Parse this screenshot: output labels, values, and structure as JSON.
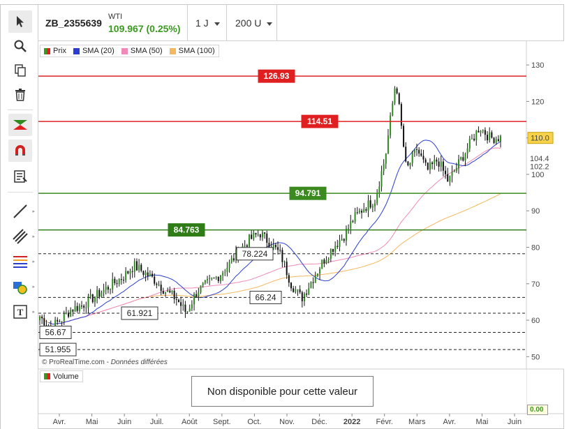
{
  "header": {
    "symbol": "ZB_2355639",
    "name": "WTI",
    "price": "109.967 (0.25%)",
    "timeframe": "1 J",
    "units": "200 U"
  },
  "legend": [
    {
      "label": "Prix",
      "color": "#3a9a1f"
    },
    {
      "label": "SMA (20)",
      "color": "#2a3fcf"
    },
    {
      "label": "SMA (50)",
      "color": "#f08ab8"
    },
    {
      "label": "SMA (100)",
      "color": "#f4b860"
    }
  ],
  "toolbar": {
    "tools": [
      "cursor-icon",
      "zoom-icon",
      "copy-icon",
      "trash-icon",
      "chart-type-icon",
      "magnet-icon",
      "list-icon",
      "line-icon",
      "parallel-lines-icon",
      "fibonacci-icon",
      "shapes-icon",
      "text-icon"
    ]
  },
  "footer": {
    "copyright": "© ProRealTime.com - ",
    "delayed": "Données différées",
    "volume_label": "Volume",
    "volume_unavailable": "Non disponible pour cette valeur",
    "volume_value": "0.00"
  },
  "chart_data": {
    "type": "candlestick",
    "ylim": [
      47,
      135
    ],
    "y_ticks": [
      50,
      60,
      70,
      80,
      90,
      100,
      110,
      120,
      130
    ],
    "x_labels": [
      "Avr.",
      "Mai",
      "Juin",
      "Juil.",
      "Août",
      "Sept.",
      "Oct.",
      "Nov.",
      "Déc.",
      "2022",
      "Févr.",
      "Mars",
      "Avr.",
      "Mai",
      "Juin"
    ],
    "current_price": "110.0",
    "price_markers": [
      {
        "label": "102.2",
        "value": 102.2,
        "color": "#555"
      },
      {
        "label": "104.4",
        "value": 104.4,
        "color": "#f08ab8"
      }
    ],
    "levels": [
      {
        "label": "126.93",
        "value": 126.93,
        "color": "#e02020",
        "style": "solid"
      },
      {
        "label": "114.51",
        "value": 114.51,
        "color": "#e02020",
        "style": "solid"
      },
      {
        "label": "94.791",
        "value": 94.791,
        "color": "#3a8a1f",
        "style": "solid"
      },
      {
        "label": "84.763",
        "value": 84.763,
        "color": "#2e7d16",
        "style": "solid"
      },
      {
        "label": "78.224",
        "value": 78.224,
        "color": "#222",
        "style": "dashed"
      },
      {
        "label": "66.24",
        "value": 66.24,
        "color": "#222",
        "style": "dashed"
      },
      {
        "label": "61.921",
        "value": 61.921,
        "color": "#222",
        "style": "dashed"
      },
      {
        "label": "56.67",
        "value": 56.67,
        "color": "#222",
        "style": "dashed"
      },
      {
        "label": "51.955",
        "value": 51.955,
        "color": "#222",
        "style": "dashed"
      }
    ],
    "price_series": [
      [
        "Avr.",
        61
      ],
      [
        "Avr.",
        58
      ],
      [
        "Avr.",
        60
      ],
      [
        "Mai",
        63
      ],
      [
        "Mai",
        64
      ],
      [
        "Mai",
        66
      ],
      [
        "Juin",
        68
      ],
      [
        "Juin",
        70
      ],
      [
        "Juin",
        72
      ],
      [
        "Juil.",
        75
      ],
      [
        "Juil.",
        73
      ],
      [
        "Juil.",
        71
      ],
      [
        "Août",
        68
      ],
      [
        "Août",
        66
      ],
      [
        "Août",
        62
      ],
      [
        "Sept.",
        68
      ],
      [
        "Sept.",
        70
      ],
      [
        "Sept.",
        72
      ],
      [
        "Oct.",
        75
      ],
      [
        "Oct.",
        79
      ],
      [
        "Oct.",
        82
      ],
      [
        "Nov.",
        84
      ],
      [
        "Nov.",
        81
      ],
      [
        "Nov.",
        78
      ],
      [
        "Déc.",
        70
      ],
      [
        "Déc.",
        66
      ],
      [
        "Déc.",
        71
      ],
      [
        "2022",
        76
      ],
      [
        "2022",
        80
      ],
      [
        "2022",
        83
      ],
      [
        "Févr.",
        88
      ],
      [
        "Févr.",
        91
      ],
      [
        "Févr.",
        93
      ],
      [
        "Mars",
        105
      ],
      [
        "Mars",
        126
      ],
      [
        "Mars",
        101
      ],
      [
        "Mars",
        107
      ],
      [
        "Avr.",
        101
      ],
      [
        "Avr.",
        104
      ],
      [
        "Avr.",
        98
      ],
      [
        "Mai",
        103
      ],
      [
        "Mai",
        108
      ],
      [
        "Mai",
        113
      ],
      [
        "Mai",
        110
      ],
      [
        "Mai",
        110
      ]
    ]
  }
}
